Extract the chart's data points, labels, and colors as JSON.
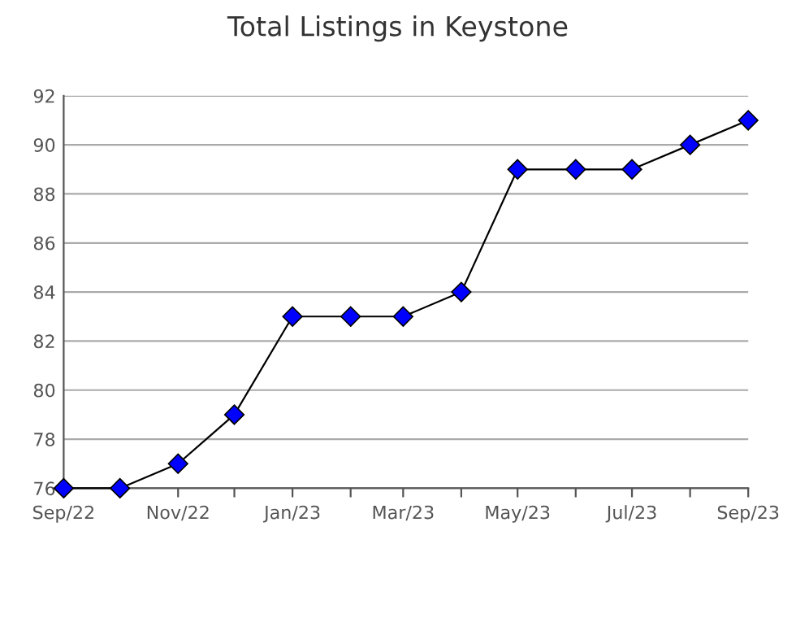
{
  "chart_data": {
    "type": "line",
    "title": "Total Listings in Keystone",
    "x": [
      "2022-09",
      "2022-10",
      "2022-11",
      "2022-12",
      "2023-01",
      "2023-02",
      "2023-03",
      "2023-04",
      "2023-05",
      "2023-06",
      "2023-07",
      "2023-08",
      "2023-09"
    ],
    "series": [
      {
        "color": "#0000ff",
        "values": [
          76,
          76,
          77,
          79,
          83,
          83,
          83,
          84,
          89,
          89,
          89,
          90,
          91
        ]
      }
    ],
    "marker": "diamond",
    "line_style": "solid",
    "xlim": [
      "2022-09",
      "2023-09"
    ],
    "xticks": [
      {
        "value": "2022-09",
        "label": "Sep/22"
      },
      {
        "value": "2022-10",
        "label": null
      },
      {
        "value": "2022-11",
        "label": "Nov/22"
      },
      {
        "value": "2022-12",
        "label": null
      },
      {
        "value": "2023-01",
        "label": "Jan/23"
      },
      {
        "value": "2023-02",
        "label": null
      },
      {
        "value": "2023-03",
        "label": "Mar/23"
      },
      {
        "value": "2023-04",
        "label": null
      },
      {
        "value": "2023-05",
        "label": "May/23"
      },
      {
        "value": "2023-06",
        "label": null
      },
      {
        "value": "2023-07",
        "label": "Jul/23"
      },
      {
        "value": "2023-08",
        "label": null
      },
      {
        "value": "2023-09",
        "label": "Sep/23"
      }
    ],
    "ylim": [
      76,
      92
    ],
    "yticks": [
      76,
      78,
      80,
      82,
      84,
      86,
      88,
      90,
      92
    ],
    "grid": "y"
  }
}
